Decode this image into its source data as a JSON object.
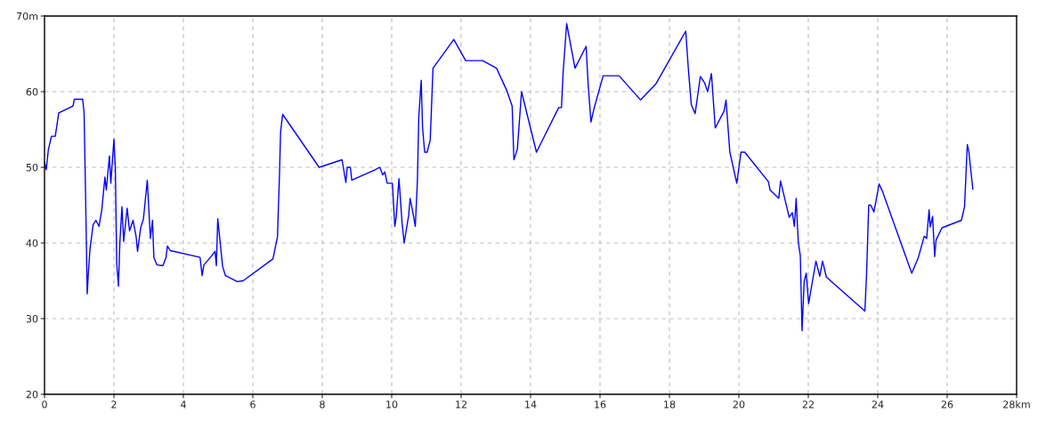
{
  "chart_data": {
    "type": "line",
    "x": [
      0,
      0.05,
      0.11,
      0.2,
      0.31,
      0.41,
      0.82,
      0.86,
      1.1,
      1.14,
      1.18,
      1.23,
      1.27,
      1.31,
      1.4,
      1.48,
      1.57,
      1.65,
      1.74,
      1.78,
      1.87,
      1.91,
      2.0,
      2.04,
      2.08,
      2.13,
      2.17,
      2.23,
      2.28,
      2.38,
      2.45,
      2.55,
      2.64,
      2.68,
      2.77,
      2.85,
      2.96,
      3.05,
      3.11,
      3.15,
      3.24,
      3.41,
      3.5,
      3.54,
      3.62,
      4.48,
      4.54,
      4.59,
      4.78,
      4.91,
      4.95,
      4.99,
      5.13,
      5.21,
      5.55,
      5.72,
      6.58,
      6.71,
      6.77,
      6.8,
      6.86,
      7.91,
      8.57,
      8.68,
      8.72,
      8.81,
      8.85,
      9.49,
      9.66,
      9.74,
      9.8,
      9.87,
      10.02,
      10.09,
      10.13,
      10.21,
      10.3,
      10.36,
      10.49,
      10.53,
      10.6,
      10.68,
      10.74,
      10.78,
      10.85,
      10.89,
      10.95,
      11.02,
      11.11,
      11.19,
      11.79,
      12.13,
      12.62,
      13.02,
      13.32,
      13.47,
      13.52,
      13.62,
      13.74,
      14.17,
      14.81,
      14.89,
      14.94,
      15.04,
      15.28,
      15.6,
      15.66,
      15.74,
      15.83,
      16.09,
      16.55,
      17.17,
      17.62,
      18.47,
      18.55,
      18.63,
      18.74,
      18.89,
      19.01,
      19.1,
      19.21,
      19.32,
      19.57,
      19.63,
      19.74,
      19.94,
      20.06,
      20.17,
      20.85,
      20.9,
      21.15,
      21.2,
      21.32,
      21.45,
      21.54,
      21.6,
      21.65,
      21.71,
      21.77,
      21.82,
      21.88,
      21.94,
      22.01,
      22.14,
      22.22,
      22.33,
      22.41,
      22.52,
      23.63,
      23.68,
      23.74,
      23.8,
      23.89,
      24.04,
      24.13,
      24.98,
      25.17,
      25.34,
      25.41,
      25.48,
      25.51,
      25.58,
      25.64,
      25.68,
      25.85,
      26.41,
      26.5,
      26.58,
      26.62,
      26.74
    ],
    "series": [
      {
        "color": "#0000ff",
        "values": [
          50.7,
          49.7,
          52.3,
          54.1,
          54.1,
          57.2,
          58.1,
          59,
          59,
          57.2,
          47.2,
          33.3,
          36.5,
          39.2,
          42.4,
          43,
          42.2,
          44.4,
          48.7,
          47,
          51.5,
          47.9,
          53.7,
          49.9,
          37.3,
          34.3,
          40,
          44.8,
          40.2,
          44.6,
          41.6,
          43,
          40.8,
          38.9,
          42,
          43.2,
          48.3,
          40.6,
          43,
          38.1,
          37.1,
          37,
          38.1,
          39.6,
          39,
          38.1,
          35.7,
          37.1,
          38.1,
          38.9,
          37,
          43.2,
          36.9,
          35.7,
          34.9,
          35,
          37.9,
          40.8,
          49.3,
          54.7,
          57,
          50,
          51,
          48,
          50,
          50,
          48.3,
          49.6,
          50,
          49,
          49.4,
          47.9,
          47.9,
          42.2,
          43.4,
          48.5,
          42.6,
          40,
          43.7,
          45.9,
          44.3,
          42.2,
          48.1,
          56.6,
          61.5,
          55.2,
          52,
          52,
          53.6,
          63.1,
          66.9,
          64.1,
          64.1,
          63.1,
          60.1,
          58.1,
          51,
          52.4,
          60,
          52,
          57.9,
          57.9,
          62.7,
          69,
          63.1,
          66,
          60.9,
          56,
          57.8,
          62.1,
          62.1,
          58.9,
          61.1,
          68,
          62.7,
          58.3,
          57.1,
          62,
          61.2,
          60,
          62.4,
          55.2,
          57.4,
          58.9,
          52,
          47.9,
          52,
          52,
          48.1,
          47,
          45.9,
          48.2,
          45.9,
          43.4,
          44,
          42.2,
          45.9,
          40.2,
          38.3,
          28.4,
          34.9,
          36,
          32,
          35.5,
          37.6,
          35.6,
          37.6,
          35.5,
          31,
          36.1,
          45,
          45,
          44.1,
          47.8,
          46.9,
          36,
          38.1,
          40.9,
          40.6,
          44.4,
          42.1,
          43.5,
          38.2,
          40.4,
          42,
          43,
          44.8,
          53,
          52.2,
          47.1
        ]
      }
    ],
    "xlim": [
      0,
      28
    ],
    "ylim": [
      20,
      70
    ],
    "xticks": [
      0,
      2,
      4,
      6,
      8,
      10,
      12,
      14,
      16,
      18,
      20,
      22,
      24,
      26,
      {
        "value": 28,
        "label": "28km"
      }
    ],
    "yticks": [
      20,
      30,
      40,
      50,
      60,
      {
        "value": 70,
        "label": "70m"
      }
    ],
    "grid": true,
    "line_style": "solid",
    "marker": "none"
  }
}
